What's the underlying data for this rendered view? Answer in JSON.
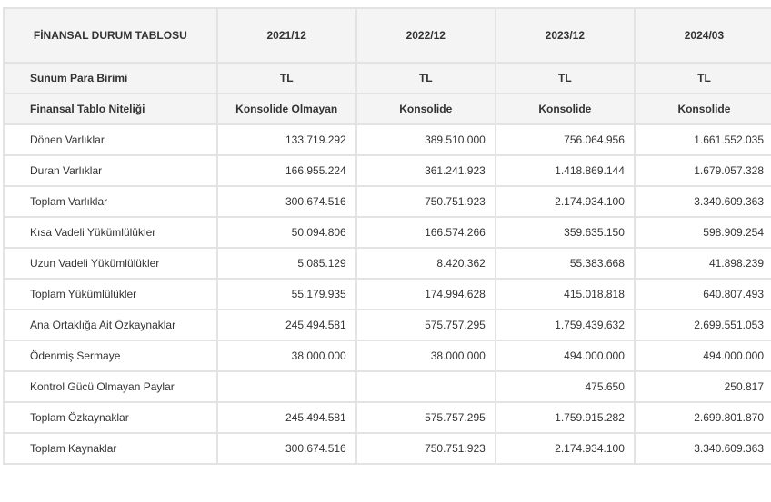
{
  "header": {
    "title": "FİNANSAL DURUM TABLOSU",
    "periods": [
      "2021/12",
      "2022/12",
      "2023/12",
      "2024/03"
    ]
  },
  "currency_row": {
    "label": "Sunum Para Birimi",
    "values": [
      "TL",
      "TL",
      "TL",
      "TL"
    ]
  },
  "nature_row": {
    "label": "Finansal Tablo Niteliği",
    "values": [
      "Konsolide Olmayan",
      "Konsolide",
      "Konsolide",
      "Konsolide"
    ]
  },
  "rows": [
    {
      "label": "Dönen Varlıklar",
      "values": [
        "133.719.292",
        "389.510.000",
        "756.064.956",
        "1.661.552.035"
      ]
    },
    {
      "label": "Duran Varlıklar",
      "values": [
        "166.955.224",
        "361.241.923",
        "1.418.869.144",
        "1.679.057.328"
      ]
    },
    {
      "label": "Toplam Varlıklar",
      "values": [
        "300.674.516",
        "750.751.923",
        "2.174.934.100",
        "3.340.609.363"
      ]
    },
    {
      "label": "Kısa Vadeli Yükümlülükler",
      "values": [
        "50.094.806",
        "166.574.266",
        "359.635.150",
        "598.909.254"
      ]
    },
    {
      "label": "Uzun Vadeli Yükümlülükler",
      "values": [
        "5.085.129",
        "8.420.362",
        "55.383.668",
        "41.898.239"
      ]
    },
    {
      "label": "Toplam Yükümlülükler",
      "values": [
        "55.179.935",
        "174.994.628",
        "415.018.818",
        "640.807.493"
      ]
    },
    {
      "label": "Ana Ortaklığa Ait Özkaynaklar",
      "values": [
        "245.494.581",
        "575.757.295",
        "1.759.439.632",
        "2.699.551.053"
      ]
    },
    {
      "label": "Ödenmiş Sermaye",
      "values": [
        "38.000.000",
        "38.000.000",
        "494.000.000",
        "494.000.000"
      ]
    },
    {
      "label": "Kontrol Gücü Olmayan Paylar",
      "values": [
        "",
        "",
        "475.650",
        "250.817"
      ]
    },
    {
      "label": "Toplam Özkaynaklar",
      "values": [
        "245.494.581",
        "575.757.295",
        "1.759.915.282",
        "2.699.801.870"
      ]
    },
    {
      "label": "Toplam Kaynaklar",
      "values": [
        "300.674.516",
        "750.751.923",
        "2.174.934.100",
        "3.340.609.363"
      ]
    }
  ]
}
